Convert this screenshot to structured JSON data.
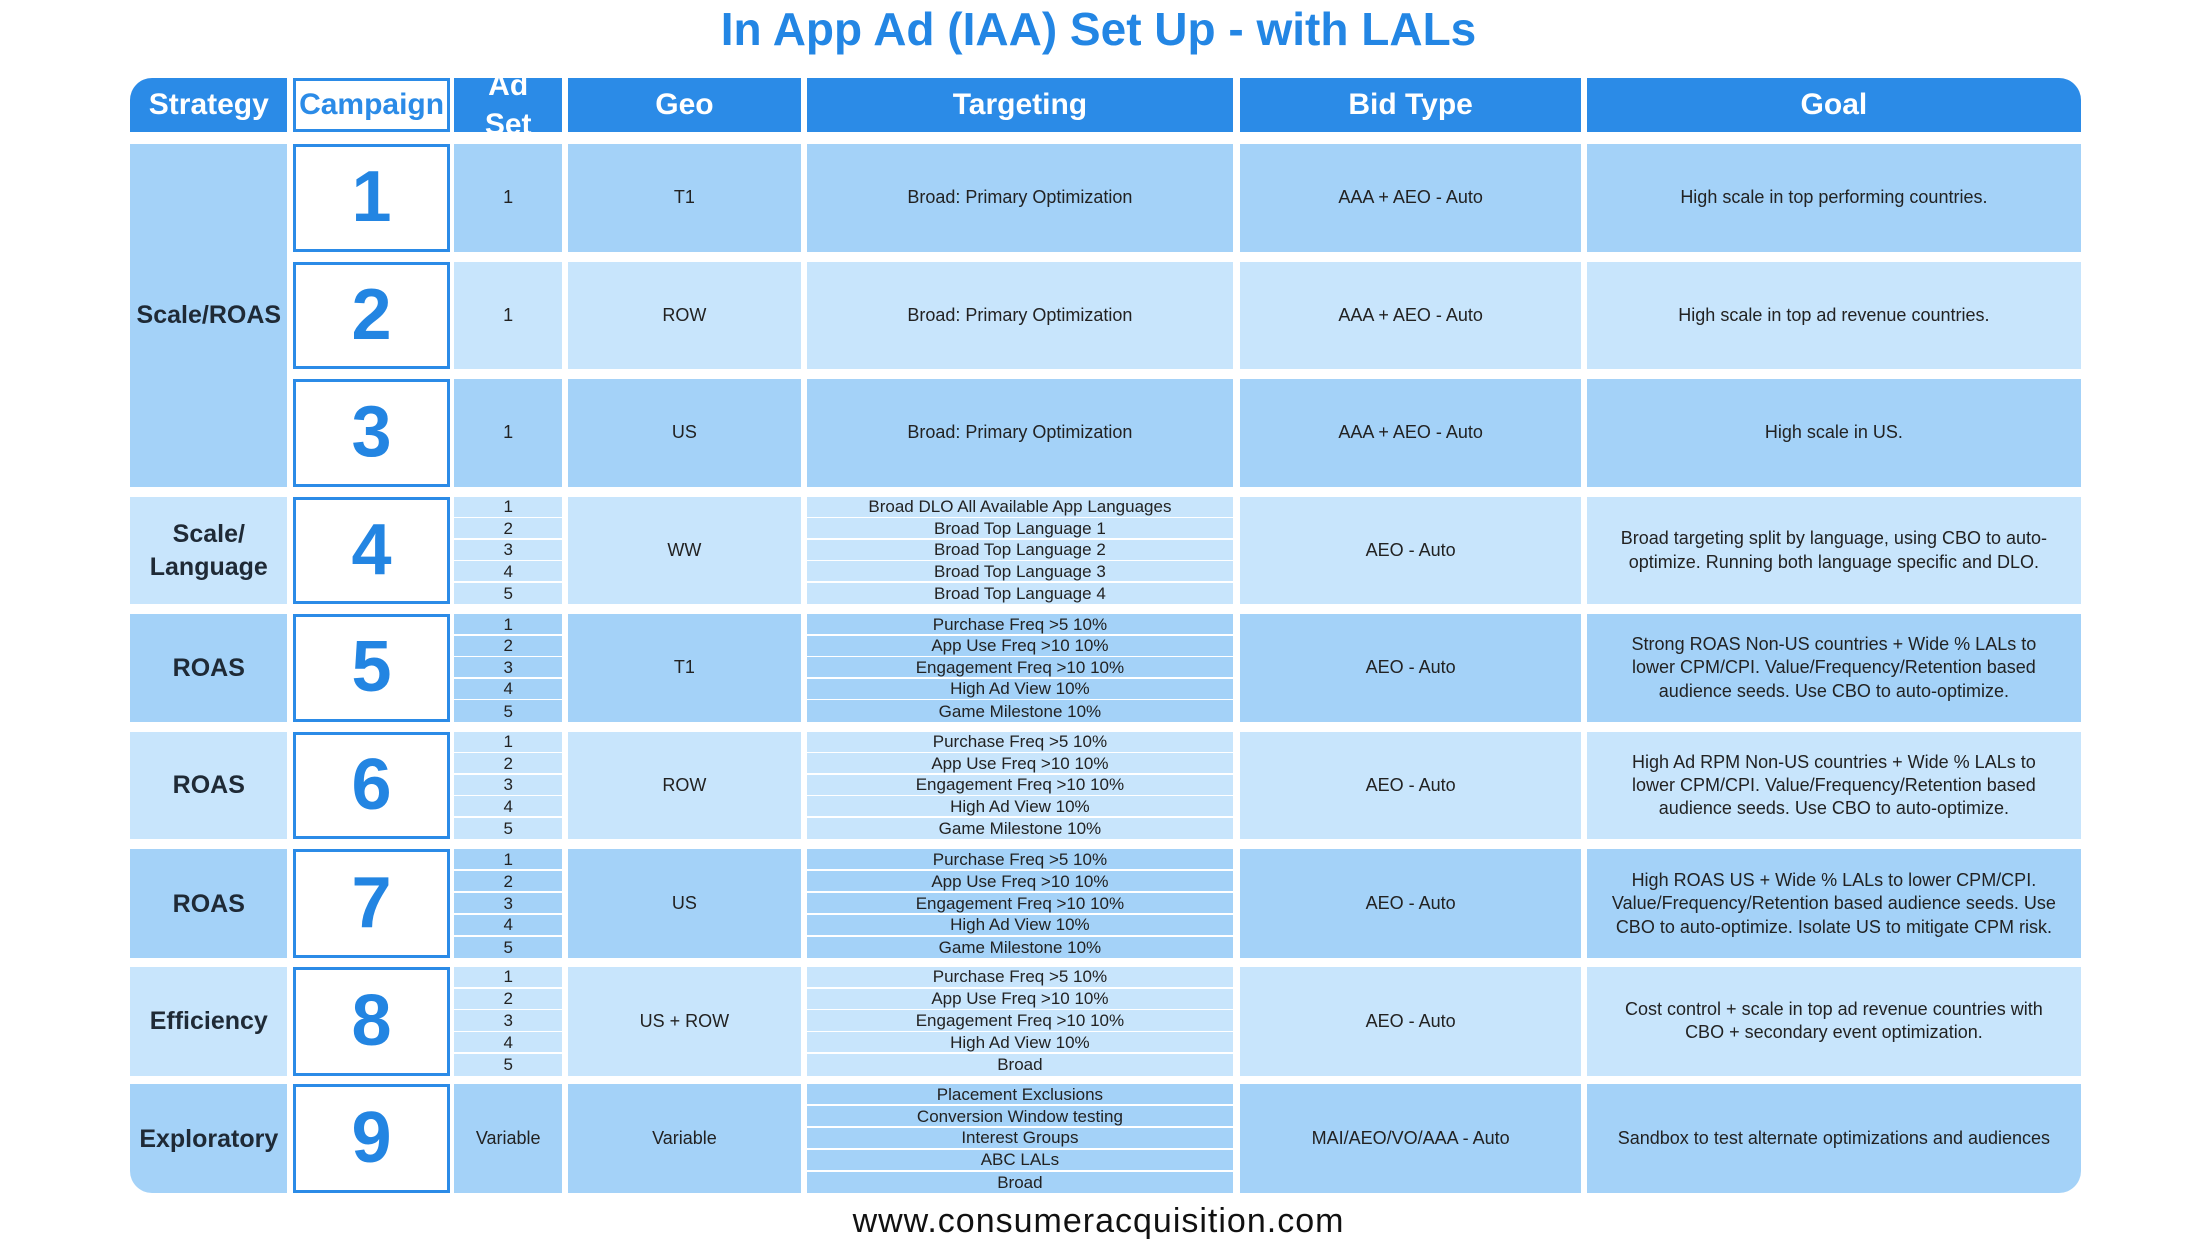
{
  "title": "In App Ad (IAA) Set Up - with LALs",
  "header": [
    "Strategy",
    "Campaign",
    "Ad Set",
    "Geo",
    "Targeting",
    "Bid Type",
    "Goal"
  ],
  "groups": [
    {
      "strategy": "Scale/ROAS",
      "campaigns": [
        {
          "campaign": "1",
          "ad_sets": [
            "1"
          ],
          "geo": "T1",
          "targeting": [
            "Broad: Primary Optimization"
          ],
          "bid_type": "AAA + AEO - Auto",
          "goal": "High scale in top performing countries."
        },
        {
          "campaign": "2",
          "ad_sets": [
            "1"
          ],
          "geo": "ROW",
          "targeting": [
            "Broad: Primary Optimization"
          ],
          "bid_type": "AAA + AEO - Auto",
          "goal": "High scale in top ad revenue countries."
        },
        {
          "campaign": "3",
          "ad_sets": [
            "1"
          ],
          "geo": "US",
          "targeting": [
            "Broad: Primary Optimization"
          ],
          "bid_type": "AAA + AEO - Auto",
          "goal": "High scale in US."
        }
      ]
    },
    {
      "strategy": "Scale/ Language",
      "campaigns": [
        {
          "campaign": "4",
          "ad_sets": [
            "1",
            "2",
            "3",
            "4",
            "5"
          ],
          "geo": "WW",
          "targeting": [
            "Broad DLO All Available App Languages",
            "Broad Top Language 1",
            "Broad Top Language 2",
            "Broad Top Language 3",
            "Broad Top Language 4"
          ],
          "bid_type": "AEO - Auto",
          "goal": "Broad targeting split by language, using CBO to auto-optimize. Running both language specific and DLO."
        }
      ]
    },
    {
      "strategy": "ROAS",
      "campaigns": [
        {
          "campaign": "5",
          "ad_sets": [
            "1",
            "2",
            "3",
            "4",
            "5"
          ],
          "geo": "T1",
          "targeting": [
            "Purchase Freq >5 10%",
            "App Use Freq >10 10%",
            "Engagement Freq >10 10%",
            "High Ad View 10%",
            "Game Milestone 10%"
          ],
          "bid_type": "AEO - Auto",
          "goal": "Strong ROAS Non-US countries + Wide % LALs to lower CPM/CPI. Value/Frequency/Retention based audience seeds. Use CBO to auto-optimize."
        }
      ]
    },
    {
      "strategy": "ROAS",
      "campaigns": [
        {
          "campaign": "6",
          "ad_sets": [
            "1",
            "2",
            "3",
            "4",
            "5"
          ],
          "geo": "ROW",
          "targeting": [
            "Purchase Freq >5 10%",
            "App Use Freq >10 10%",
            "Engagement Freq >10 10%",
            "High Ad View 10%",
            "Game Milestone 10%"
          ],
          "bid_type": "AEO - Auto",
          "goal": "High Ad RPM Non-US countries + Wide % LALs to lower CPM/CPI. Value/Frequency/Retention based audience seeds. Use CBO to auto-optimize."
        }
      ]
    },
    {
      "strategy": "ROAS",
      "campaigns": [
        {
          "campaign": "7",
          "ad_sets": [
            "1",
            "2",
            "3",
            "4",
            "5"
          ],
          "geo": "US",
          "targeting": [
            "Purchase Freq >5 10%",
            "App Use Freq >10 10%",
            "Engagement Freq >10 10%",
            "High Ad View 10%",
            "Game Milestone 10%"
          ],
          "bid_type": "AEO - Auto",
          "goal": "High ROAS US + Wide % LALs to lower CPM/CPI. Value/Frequency/Retention based audience seeds. Use CBO to auto-optimize. Isolate US to mitigate CPM risk."
        }
      ]
    },
    {
      "strategy": "Efficiency",
      "campaigns": [
        {
          "campaign": "8",
          "ad_sets": [
            "1",
            "2",
            "3",
            "4",
            "5"
          ],
          "geo": "US + ROW",
          "targeting": [
            "Purchase Freq >5 10%",
            "App Use Freq >10 10%",
            "Engagement Freq >10 10%",
            "High Ad View 10%",
            "Broad"
          ],
          "bid_type": "AEO - Auto",
          "goal": "Cost control + scale in top ad revenue countries with CBO + secondary event optimization."
        }
      ]
    },
    {
      "strategy": "Exploratory",
      "campaigns": [
        {
          "campaign": "9",
          "ad_sets": [
            "Variable"
          ],
          "geo": "Variable",
          "targeting": [
            "Placement Exclusions",
            "Conversion Window testing",
            "Interest Groups",
            "ABC LALs",
            "Broad"
          ],
          "bid_type": "MAI/AEO/VO/AAA - Auto",
          "goal": "Sandbox to test alternate optimizations and audiences"
        }
      ]
    }
  ],
  "footer": "www.consumeracquisition.com"
}
